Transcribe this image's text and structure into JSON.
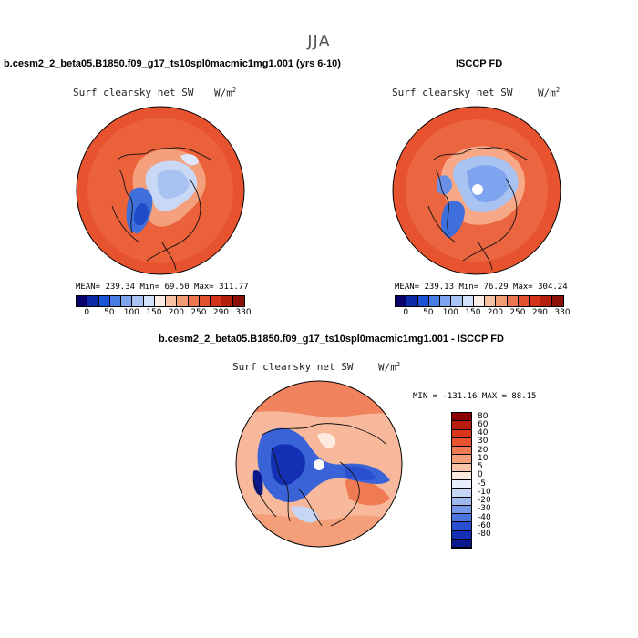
{
  "figure": {
    "title": "JJA"
  },
  "panels": [
    {
      "title": "b.cesm2_2_beta05.B1850.f09_g17_ts10spl0macmic1mg1.001 (yrs 6-10)",
      "field": "Surf clearsky net SW",
      "units": "W/m",
      "units_exp": "2",
      "stats": "MEAN= 239.34   Min=  69.50   Max= 311.77"
    },
    {
      "title": "ISCCP FD",
      "field": "Surf clearsky net SW",
      "units": "W/m",
      "units_exp": "2",
      "stats": "MEAN= 239.13   Min=  76.29   Max= 304.24"
    },
    {
      "title": "b.cesm2_2_beta05.B1850.f09_g17_ts10spl0macmic1mg1.001 - ISCCP FD",
      "field": "Surf clearsky net SW",
      "units": "W/m",
      "units_exp": "2",
      "stats": "MIN = -131.16 MAX =  88.15"
    }
  ],
  "colorbar_abs": {
    "labels": [
      "0",
      "50",
      "100",
      "150",
      "200",
      "250",
      "290",
      "330"
    ],
    "colors": [
      "#08006b",
      "#0a2aa8",
      "#1a55d6",
      "#4a7ce6",
      "#7ea4ef",
      "#a9c3f5",
      "#d4e1fa",
      "#fbeee6",
      "#f7c2a4",
      "#f29c76",
      "#ec7650",
      "#e3512e",
      "#d4341a",
      "#b5200d",
      "#8a1005"
    ]
  },
  "colorbar_diff": {
    "labels": [
      "80",
      "60",
      "40",
      "30",
      "20",
      "10",
      "5",
      "0",
      "-5",
      "-10",
      "-20",
      "-30",
      "-40",
      "-60",
      "-80"
    ],
    "colors": [
      "#8a0000",
      "#b81c0c",
      "#d9361a",
      "#e9542e",
      "#f07a52",
      "#f59f7a",
      "#f9c4a8",
      "#fdebe0",
      "#e8eefb",
      "#c7d6f5",
      "#9fb9ef",
      "#7698e8",
      "#4c74df",
      "#2a4fcf",
      "#1330b4",
      "#0a1a8c"
    ]
  }
}
